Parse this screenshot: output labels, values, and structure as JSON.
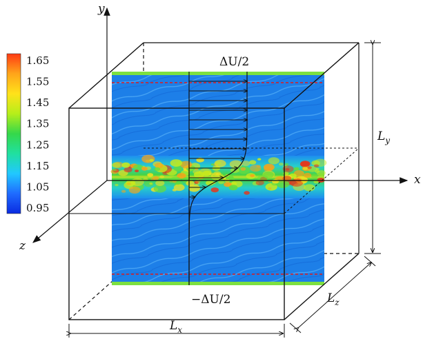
{
  "colorbar": {
    "ticks": [
      "1.65",
      "1.55",
      "1.45",
      "1.35",
      "1.25",
      "1.15",
      "1.05",
      "0.95"
    ],
    "colors": [
      "#0a2be0",
      "#1f6bff",
      "#21c8ff",
      "#20e0a0",
      "#35d84a",
      "#b6ee1a",
      "#ffe21a",
      "#ffa51a",
      "#ff3a14"
    ]
  },
  "axes": {
    "y": "y",
    "x": "x",
    "z": "z"
  },
  "labels": {
    "du_top": "ΔU/2",
    "du_bottom": "−ΔU/2",
    "Lx_main": "L",
    "Lx_sub": "x",
    "Ly_main": "L",
    "Ly_sub": "y",
    "Lz_main": "L",
    "Lz_sub": "z"
  },
  "colors": {
    "field_base": "#1d7fe8",
    "field_band": "#2fd36a",
    "field_band_hot": "#e8e21a",
    "dashed_red": "#e01a1a",
    "line": "#111111"
  }
}
